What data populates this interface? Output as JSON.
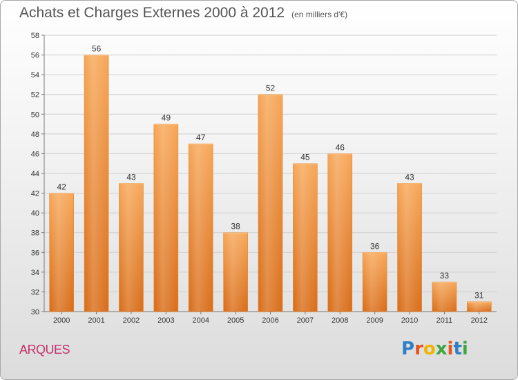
{
  "header": {
    "title": "Achats et Charges Externes 2000 à 2012",
    "unit": "(en milliers d'€)"
  },
  "footer": {
    "commune": "ARQUES",
    "logo_text": "Proxiti",
    "logo_colors": [
      "#2e7fc6",
      "#e8541c",
      "#f0b400",
      "#3da63d",
      "#e8541c",
      "#2e7fc6",
      "#3da63d"
    ]
  },
  "chart_data": {
    "type": "bar",
    "categories": [
      "2000",
      "2001",
      "2002",
      "2003",
      "2004",
      "2005",
      "2006",
      "2007",
      "2008",
      "2009",
      "2010",
      "2011",
      "2012"
    ],
    "values": [
      42,
      56,
      43,
      49,
      47,
      38,
      52,
      45,
      46,
      36,
      43,
      33,
      31
    ],
    "ylim": [
      30,
      58
    ],
    "yticks": [
      30,
      32,
      34,
      36,
      38,
      40,
      42,
      44,
      46,
      48,
      50,
      52,
      54,
      56,
      58
    ],
    "grid": true,
    "bar_color": "#f09a48",
    "legend": "none"
  }
}
